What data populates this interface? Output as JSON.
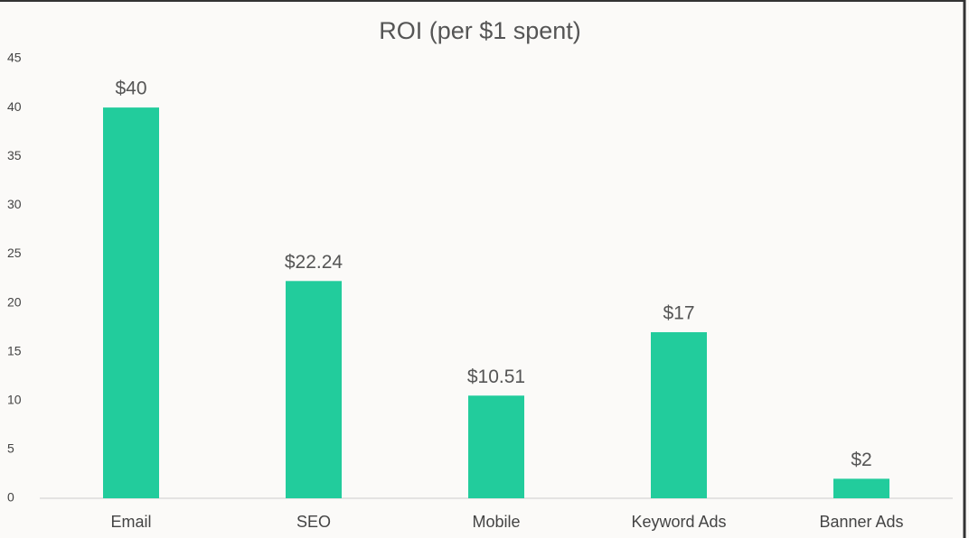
{
  "chart_data": {
    "type": "bar",
    "title": "ROI (per $1 spent)",
    "categories": [
      "Email",
      "SEO",
      "Mobile",
      "Keyword Ads",
      "Banner Ads"
    ],
    "values": [
      40,
      22.24,
      10.51,
      17,
      2
    ],
    "value_labels": [
      "$40",
      "$22.24",
      "$10.51",
      "$17",
      "$2"
    ],
    "color": "#22cc9c",
    "ylim": [
      0,
      45
    ],
    "yticks": [
      0,
      5,
      10,
      15,
      20,
      25,
      30,
      35,
      40,
      45
    ],
    "grid": false
  }
}
